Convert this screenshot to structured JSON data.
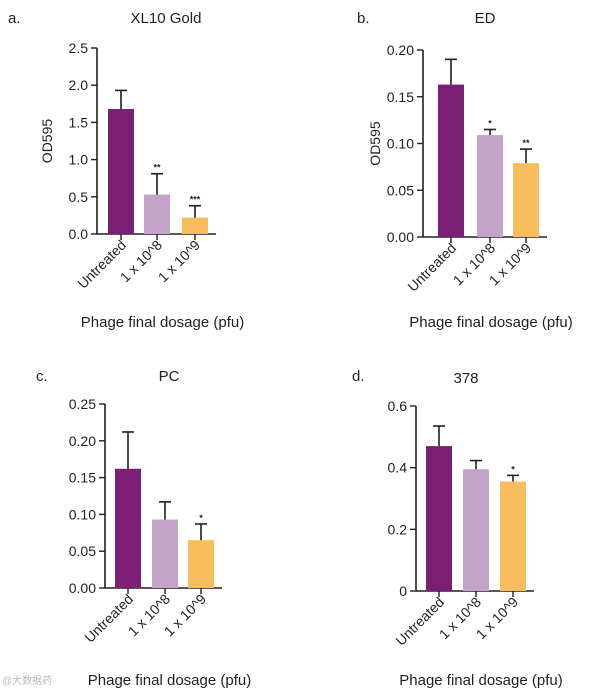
{
  "watermark": "@大数据药",
  "colors": {
    "untreated": "#7c1f74",
    "dose8": "#c3a4c8",
    "dose9": "#f7bd5c",
    "axis": "#231f20"
  },
  "chart_data": [
    {
      "type": "bar",
      "panel_label": "a.",
      "title": "XL10 Gold",
      "xlabel": "Phage final dosage (pfu)",
      "ylabel": "OD595",
      "categories": [
        "Untreated",
        "1 x 10^8",
        "1 x 10^9"
      ],
      "values": [
        1.68,
        0.53,
        0.22
      ],
      "errors": [
        0.25,
        0.28,
        0.16
      ],
      "significance": [
        "",
        "**",
        "***"
      ],
      "ylim": [
        0,
        2.5
      ],
      "yticks": [
        "0.0",
        "0.5",
        "1.0",
        "1.5",
        "2.0",
        "2.5"
      ]
    },
    {
      "type": "bar",
      "panel_label": "b.",
      "title": "ED",
      "xlabel": "Phage final dosage (pfu)",
      "ylabel": "OD595",
      "categories": [
        "Untreated",
        "1 x 10^8",
        "1 x 10^9"
      ],
      "values": [
        0.163,
        0.109,
        0.079
      ],
      "errors": [
        0.027,
        0.006,
        0.015
      ],
      "significance": [
        "",
        "*",
        "**"
      ],
      "ylim": [
        0,
        0.2
      ],
      "yticks": [
        "0.00",
        "0.05",
        "0.10",
        "0.15",
        "0.20"
      ]
    },
    {
      "type": "bar",
      "panel_label": "c.",
      "title": "PC",
      "xlabel": "Phage final dosage (pfu)",
      "ylabel": "",
      "categories": [
        "Untreated",
        "1 x 10^8",
        "1 x 10^9"
      ],
      "values": [
        0.162,
        0.093,
        0.065
      ],
      "errors": [
        0.05,
        0.024,
        0.022
      ],
      "significance": [
        "",
        "",
        "*"
      ],
      "ylim": [
        0,
        0.25
      ],
      "yticks": [
        "0.00",
        "0.05",
        "0.10",
        "0.15",
        "0.20",
        "0.25"
      ]
    },
    {
      "type": "bar",
      "panel_label": "d.",
      "title": "378",
      "xlabel": "Phage final dosage (pfu)",
      "ylabel": "",
      "categories": [
        "Untreated",
        "1 x 10^8",
        "1 x 10^9"
      ],
      "values": [
        0.47,
        0.395,
        0.355
      ],
      "errors": [
        0.065,
        0.028,
        0.02
      ],
      "significance": [
        "",
        "",
        "*"
      ],
      "ylim": [
        0,
        0.6
      ],
      "yticks": [
        "0",
        "0.2",
        "0.4",
        "0.6"
      ]
    }
  ]
}
